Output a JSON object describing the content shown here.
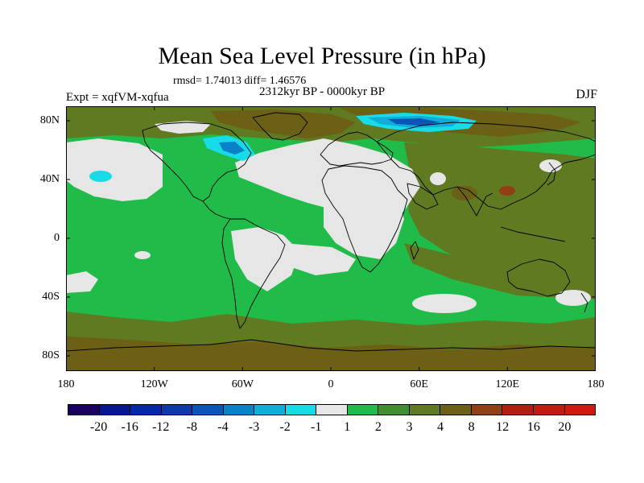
{
  "title": "Mean Sea Level Pressure (in hPa)",
  "stats": "rmsd= 1.74013 diff= 1.46576",
  "period": "2312kyr BP - 0000kyr BP",
  "experiment": "Expt = xqfVM-xqfua",
  "season": "DJF",
  "x_ticks": [
    "180",
    "120W",
    "60W",
    "0",
    "60E",
    "120E",
    "180"
  ],
  "y_ticks": [
    "80N",
    "40N",
    "0",
    "40S",
    "80S"
  ],
  "colorbar": {
    "labels": [
      "-20",
      "-16",
      "-12",
      "-8",
      "-4",
      "-3",
      "-2",
      "-1",
      "1",
      "2",
      "3",
      "4",
      "8",
      "12",
      "16",
      "20"
    ],
    "colors": [
      "#1a0060",
      "#0a1590",
      "#0428a6",
      "#0c3aa8",
      "#0a56b8",
      "#0b82c8",
      "#12acd8",
      "#18dbe8",
      "#e6e6e6",
      "#20bb48",
      "#3f8f2e",
      "#5f7a20",
      "#6c5f16",
      "#904014",
      "#b02010",
      "#c01d10",
      "#d21a0c"
    ]
  },
  "map_colors": {
    "ocean_base": "#20bb48",
    "land_base": "#5f7a20",
    "neutral": "#e6e6e6",
    "level_2": "#3f8f2e",
    "level_4": "#6c5f16",
    "level_8": "#904014",
    "neg_1": "#18dbe8",
    "neg_2": "#12acd8",
    "neg_3": "#0b82c8",
    "neg_4": "#0a56b8"
  }
}
